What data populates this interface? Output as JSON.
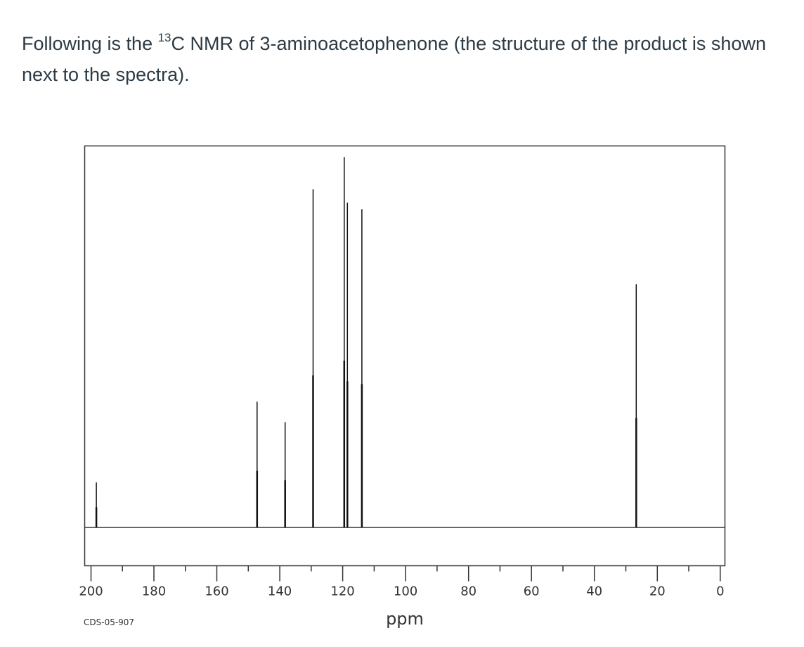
{
  "question": {
    "before_sup": "Following is the ",
    "sup": "13",
    "after_sup": "C NMR of 3-aminoacetophenone (the structure of the product is shown next to the spectra)."
  },
  "chart_data": {
    "type": "line",
    "title": "",
    "xlabel": "ppm",
    "ylabel": "",
    "xlim": [
      202,
      -1.5
    ],
    "x_direction": "descending",
    "major_ticks": [
      200,
      180,
      160,
      140,
      120,
      100,
      80,
      60,
      40,
      20,
      0
    ],
    "minor_ticks": [
      190,
      170,
      150,
      130,
      110,
      90,
      70,
      50,
      30,
      10
    ],
    "tick_labels": [
      "200",
      "180",
      "160",
      "140",
      "120",
      "100",
      "80",
      "60",
      "40",
      "20",
      "0"
    ],
    "spectrum_code": "CDS-05-907",
    "grid": false,
    "peaks_unit": "relative intensity (0-1)",
    "peaks": [
      {
        "ppm": 198.3,
        "intensity": 0.118
      },
      {
        "ppm": 147.2,
        "intensity": 0.33
      },
      {
        "ppm": 138.3,
        "intensity": 0.276
      },
      {
        "ppm": 129.4,
        "intensity": 0.887
      },
      {
        "ppm": 119.5,
        "intensity": 0.972
      },
      {
        "ppm": 118.5,
        "intensity": 0.852
      },
      {
        "ppm": 113.9,
        "intensity": 0.835
      },
      {
        "ppm": 26.7,
        "intensity": 0.638
      }
    ]
  }
}
